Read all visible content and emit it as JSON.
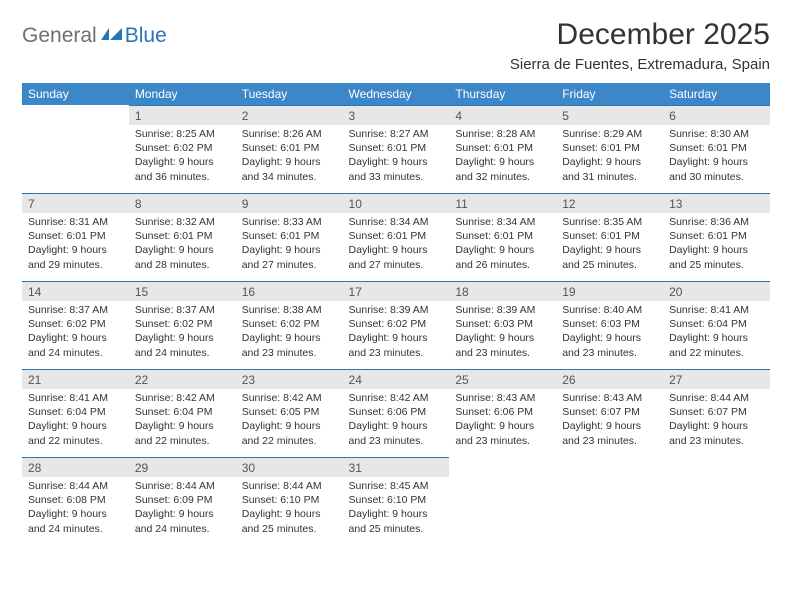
{
  "logo": {
    "general": "General",
    "blue": "Blue"
  },
  "title": "December 2025",
  "location": "Sierra de Fuentes, Extremadura, Spain",
  "colors": {
    "header_bg": "#3c87c7",
    "header_text": "#ffffff",
    "daynum_bg": "#e7e7e7",
    "row_divider": "#2a74b8",
    "text": "#333333",
    "logo_gray": "#6f6f6f",
    "logo_blue": "#2a74b8"
  },
  "day_headers": [
    "Sunday",
    "Monday",
    "Tuesday",
    "Wednesday",
    "Thursday",
    "Friday",
    "Saturday"
  ],
  "weeks": [
    [
      null,
      {
        "n": "1",
        "sr": "Sunrise: 8:25 AM",
        "ss": "Sunset: 6:02 PM",
        "dl1": "Daylight: 9 hours",
        "dl2": "and 36 minutes."
      },
      {
        "n": "2",
        "sr": "Sunrise: 8:26 AM",
        "ss": "Sunset: 6:01 PM",
        "dl1": "Daylight: 9 hours",
        "dl2": "and 34 minutes."
      },
      {
        "n": "3",
        "sr": "Sunrise: 8:27 AM",
        "ss": "Sunset: 6:01 PM",
        "dl1": "Daylight: 9 hours",
        "dl2": "and 33 minutes."
      },
      {
        "n": "4",
        "sr": "Sunrise: 8:28 AM",
        "ss": "Sunset: 6:01 PM",
        "dl1": "Daylight: 9 hours",
        "dl2": "and 32 minutes."
      },
      {
        "n": "5",
        "sr": "Sunrise: 8:29 AM",
        "ss": "Sunset: 6:01 PM",
        "dl1": "Daylight: 9 hours",
        "dl2": "and 31 minutes."
      },
      {
        "n": "6",
        "sr": "Sunrise: 8:30 AM",
        "ss": "Sunset: 6:01 PM",
        "dl1": "Daylight: 9 hours",
        "dl2": "and 30 minutes."
      }
    ],
    [
      {
        "n": "7",
        "sr": "Sunrise: 8:31 AM",
        "ss": "Sunset: 6:01 PM",
        "dl1": "Daylight: 9 hours",
        "dl2": "and 29 minutes."
      },
      {
        "n": "8",
        "sr": "Sunrise: 8:32 AM",
        "ss": "Sunset: 6:01 PM",
        "dl1": "Daylight: 9 hours",
        "dl2": "and 28 minutes."
      },
      {
        "n": "9",
        "sr": "Sunrise: 8:33 AM",
        "ss": "Sunset: 6:01 PM",
        "dl1": "Daylight: 9 hours",
        "dl2": "and 27 minutes."
      },
      {
        "n": "10",
        "sr": "Sunrise: 8:34 AM",
        "ss": "Sunset: 6:01 PM",
        "dl1": "Daylight: 9 hours",
        "dl2": "and 27 minutes."
      },
      {
        "n": "11",
        "sr": "Sunrise: 8:34 AM",
        "ss": "Sunset: 6:01 PM",
        "dl1": "Daylight: 9 hours",
        "dl2": "and 26 minutes."
      },
      {
        "n": "12",
        "sr": "Sunrise: 8:35 AM",
        "ss": "Sunset: 6:01 PM",
        "dl1": "Daylight: 9 hours",
        "dl2": "and 25 minutes."
      },
      {
        "n": "13",
        "sr": "Sunrise: 8:36 AM",
        "ss": "Sunset: 6:01 PM",
        "dl1": "Daylight: 9 hours",
        "dl2": "and 25 minutes."
      }
    ],
    [
      {
        "n": "14",
        "sr": "Sunrise: 8:37 AM",
        "ss": "Sunset: 6:02 PM",
        "dl1": "Daylight: 9 hours",
        "dl2": "and 24 minutes."
      },
      {
        "n": "15",
        "sr": "Sunrise: 8:37 AM",
        "ss": "Sunset: 6:02 PM",
        "dl1": "Daylight: 9 hours",
        "dl2": "and 24 minutes."
      },
      {
        "n": "16",
        "sr": "Sunrise: 8:38 AM",
        "ss": "Sunset: 6:02 PM",
        "dl1": "Daylight: 9 hours",
        "dl2": "and 23 minutes."
      },
      {
        "n": "17",
        "sr": "Sunrise: 8:39 AM",
        "ss": "Sunset: 6:02 PM",
        "dl1": "Daylight: 9 hours",
        "dl2": "and 23 minutes."
      },
      {
        "n": "18",
        "sr": "Sunrise: 8:39 AM",
        "ss": "Sunset: 6:03 PM",
        "dl1": "Daylight: 9 hours",
        "dl2": "and 23 minutes."
      },
      {
        "n": "19",
        "sr": "Sunrise: 8:40 AM",
        "ss": "Sunset: 6:03 PM",
        "dl1": "Daylight: 9 hours",
        "dl2": "and 23 minutes."
      },
      {
        "n": "20",
        "sr": "Sunrise: 8:41 AM",
        "ss": "Sunset: 6:04 PM",
        "dl1": "Daylight: 9 hours",
        "dl2": "and 22 minutes."
      }
    ],
    [
      {
        "n": "21",
        "sr": "Sunrise: 8:41 AM",
        "ss": "Sunset: 6:04 PM",
        "dl1": "Daylight: 9 hours",
        "dl2": "and 22 minutes."
      },
      {
        "n": "22",
        "sr": "Sunrise: 8:42 AM",
        "ss": "Sunset: 6:04 PM",
        "dl1": "Daylight: 9 hours",
        "dl2": "and 22 minutes."
      },
      {
        "n": "23",
        "sr": "Sunrise: 8:42 AM",
        "ss": "Sunset: 6:05 PM",
        "dl1": "Daylight: 9 hours",
        "dl2": "and 22 minutes."
      },
      {
        "n": "24",
        "sr": "Sunrise: 8:42 AM",
        "ss": "Sunset: 6:06 PM",
        "dl1": "Daylight: 9 hours",
        "dl2": "and 23 minutes."
      },
      {
        "n": "25",
        "sr": "Sunrise: 8:43 AM",
        "ss": "Sunset: 6:06 PM",
        "dl1": "Daylight: 9 hours",
        "dl2": "and 23 minutes."
      },
      {
        "n": "26",
        "sr": "Sunrise: 8:43 AM",
        "ss": "Sunset: 6:07 PM",
        "dl1": "Daylight: 9 hours",
        "dl2": "and 23 minutes."
      },
      {
        "n": "27",
        "sr": "Sunrise: 8:44 AM",
        "ss": "Sunset: 6:07 PM",
        "dl1": "Daylight: 9 hours",
        "dl2": "and 23 minutes."
      }
    ],
    [
      {
        "n": "28",
        "sr": "Sunrise: 8:44 AM",
        "ss": "Sunset: 6:08 PM",
        "dl1": "Daylight: 9 hours",
        "dl2": "and 24 minutes."
      },
      {
        "n": "29",
        "sr": "Sunrise: 8:44 AM",
        "ss": "Sunset: 6:09 PM",
        "dl1": "Daylight: 9 hours",
        "dl2": "and 24 minutes."
      },
      {
        "n": "30",
        "sr": "Sunrise: 8:44 AM",
        "ss": "Sunset: 6:10 PM",
        "dl1": "Daylight: 9 hours",
        "dl2": "and 25 minutes."
      },
      {
        "n": "31",
        "sr": "Sunrise: 8:45 AM",
        "ss": "Sunset: 6:10 PM",
        "dl1": "Daylight: 9 hours",
        "dl2": "and 25 minutes."
      },
      null,
      null,
      null
    ]
  ]
}
